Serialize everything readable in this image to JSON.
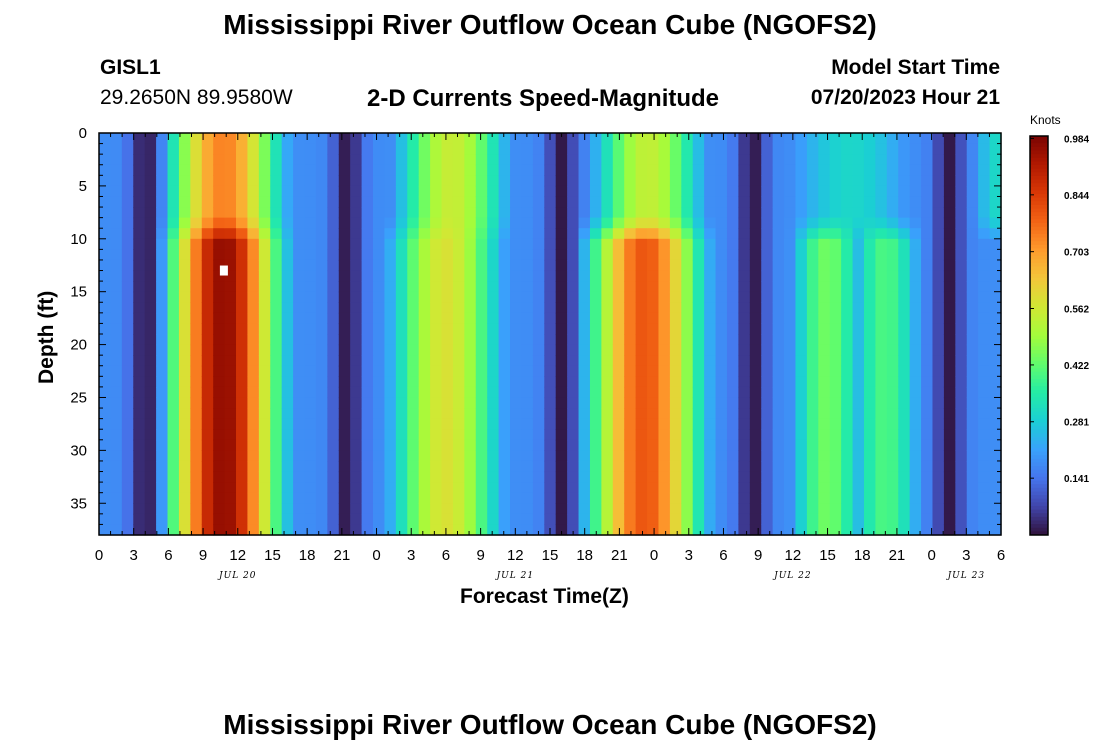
{
  "page_title": "Mississippi River Outflow Ocean Cube (NGOFS2)",
  "page_title_repeat": "Mississippi River Outflow Ocean Cube (NGOFS2)",
  "station": {
    "id": "GISL1",
    "coords": "29.2650N  89.9580W"
  },
  "plot_subtitle": "2-D Currents Speed-Magnitude",
  "model_start": {
    "label": "Model Start Time",
    "value": "07/20/2023 Hour 21"
  },
  "colors": {
    "colormap": [
      "#30123b",
      "#4145ab",
      "#4675ed",
      "#39a2fc",
      "#1bcfd4",
      "#24eca6",
      "#61fc6c",
      "#a4fc3b",
      "#d1e834",
      "#f3c63a",
      "#fe9b2d",
      "#f36315",
      "#d93806",
      "#b11901",
      "#7a0402"
    ],
    "marker": "#ffffff"
  },
  "chart_data": {
    "type": "heatmap",
    "title": "2-D Currents Speed-Magnitude",
    "xlabel": "Forecast Time(Z)",
    "ylabel": "Depth (ft)",
    "colorbar_label": "Knots",
    "value_range": [
      0.0,
      0.99
    ],
    "colorbar_ticks": [
      "0.984",
      "0.844",
      "0.703",
      "0.562",
      "0.422",
      "0.281",
      "0.141"
    ],
    "colorbar_tick_values": [
      0.984,
      0.844,
      0.703,
      0.562,
      0.422,
      0.281,
      0.141
    ],
    "x_range_hours": [
      0,
      78
    ],
    "y_range_ft": [
      0,
      38
    ],
    "x_ticks": [
      0,
      3,
      6,
      9,
      12,
      15,
      18,
      21,
      24,
      27,
      30,
      33,
      36,
      39,
      42,
      45,
      48,
      51,
      54,
      57,
      60,
      63,
      66,
      69,
      72,
      75,
      78
    ],
    "x_tick_labels": [
      "0",
      "3",
      "6",
      "9",
      "12",
      "15",
      "18",
      "21",
      "0",
      "3",
      "6",
      "9",
      "12",
      "15",
      "18",
      "21",
      "0",
      "3",
      "6",
      "9",
      "12",
      "15",
      "18",
      "21",
      "0",
      "3",
      "6"
    ],
    "y_ticks": [
      0,
      5,
      10,
      15,
      20,
      25,
      30,
      35
    ],
    "y_tick_labels": [
      "0",
      "5",
      "10",
      "15",
      "20",
      "25",
      "30",
      "35"
    ],
    "date_labels": [
      {
        "label": "JUL 20",
        "hour": 12
      },
      {
        "label": "JUL 21",
        "hour": 36
      },
      {
        "label": "JUL 22",
        "hour": 60
      },
      {
        "label": "JUL 23",
        "hour": 75
      }
    ],
    "marker_point": {
      "hour": 10.8,
      "depth": 13
    },
    "upper_layer_ft": [
      0,
      9
    ],
    "slack_minima_hours": [
      4,
      21.5,
      40,
      56.5,
      73.5
    ],
    "surface_layer_maxima": [
      {
        "hour": 10.8,
        "value": 0.74,
        "width_h": 5.0
      },
      {
        "hour": 30.5,
        "value": 0.55,
        "width_h": 5.0
      },
      {
        "hour": 47.5,
        "value": 0.54,
        "width_h": 5.0
      },
      {
        "hour": 65.0,
        "value": 0.3,
        "width_h": 7.0
      },
      {
        "hour": 78.5,
        "value": 0.32,
        "width_h": 4.0
      }
    ],
    "lower_layer_maxima": [
      {
        "hour": 10.8,
        "value": 0.96,
        "width_h": 4.8
      },
      {
        "hour": 30.0,
        "value": 0.58,
        "width_h": 5.0
      },
      {
        "hour": 47.2,
        "value": 0.8,
        "width_h": 5.0
      },
      {
        "hour": 63.0,
        "value": 0.44,
        "width_h": 3.5
      },
      {
        "hour": 68.0,
        "value": 0.4,
        "width_h": 3.5
      }
    ]
  }
}
